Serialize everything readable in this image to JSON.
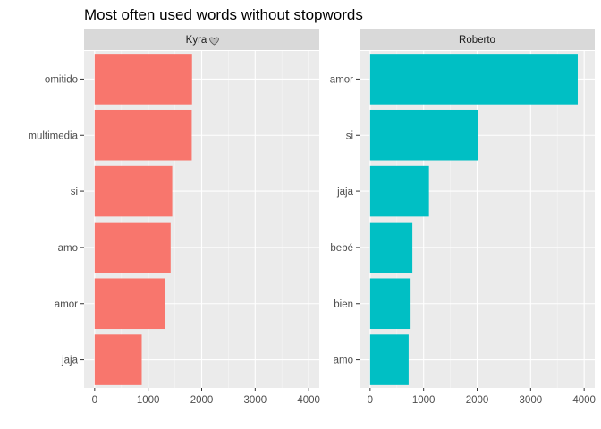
{
  "chart_data": {
    "type": "bar",
    "orientation": "horizontal",
    "title": "Most often used words without stopwords",
    "xlabel": "",
    "ylabel": "",
    "xlim": [
      0,
      4000
    ],
    "x_ticks": [
      "0",
      "1000",
      "2000",
      "3000",
      "4000"
    ],
    "grid": true,
    "legend": "none",
    "panels": [
      {
        "strip": "Kyra",
        "strip_icon": "heart-icon",
        "color": "#F8766D",
        "categories": [
          "omitido",
          "multimedia",
          "si",
          "amo",
          "amor",
          "jaja"
        ],
        "values": [
          1820,
          1815,
          1450,
          1420,
          1320,
          880
        ]
      },
      {
        "strip": "Roberto",
        "color": "#00BFC4",
        "categories": [
          "amor",
          "si",
          "jaja",
          "bebé",
          "bien",
          "amo"
        ],
        "values": [
          3880,
          2020,
          1100,
          790,
          740,
          720
        ]
      }
    ]
  },
  "colors": {
    "panel_bg": "#EBEBEB",
    "strip_bg": "#D9D9D9",
    "grid_major": "#FFFFFF"
  }
}
